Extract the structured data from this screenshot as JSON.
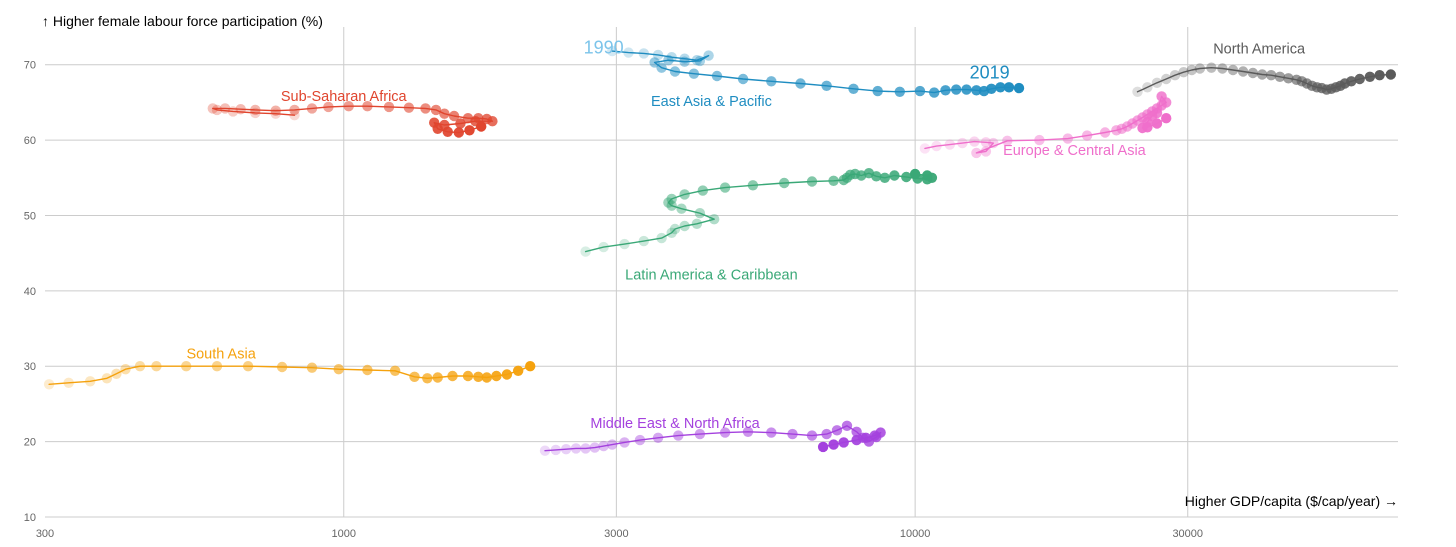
{
  "chart_data": {
    "type": "scatter",
    "x_scale": "log",
    "xlabel": "Higher GDP/capita ($/cap/year) →",
    "ylabel": "↑ Higher female labour force participation (%)",
    "xlim": [
      300,
      70000
    ],
    "ylim": [
      10,
      75
    ],
    "x_ticks": [
      {
        "value": 300,
        "label": "300"
      },
      {
        "value": 1000,
        "label": "1000"
      },
      {
        "value": 3000,
        "label": "3000"
      },
      {
        "value": 10000,
        "label": "10000"
      },
      {
        "value": 30000,
        "label": "30000"
      }
    ],
    "y_ticks": [
      {
        "value": 10,
        "label": "10"
      },
      {
        "value": 20,
        "label": "20"
      },
      {
        "value": 30,
        "label": "30"
      },
      {
        "value": 40,
        "label": "40"
      },
      {
        "value": 50,
        "label": "50"
      },
      {
        "value": 60,
        "label": "60"
      },
      {
        "value": 70,
        "label": "70"
      }
    ],
    "year_annotations": [
      {
        "text": "1990",
        "x": 2850,
        "y": 71.5,
        "color": "#7cc4ea"
      },
      {
        "text": "2019",
        "x": 13500,
        "y": 68.2,
        "color": "#1f8dc1"
      }
    ],
    "series": [
      {
        "name": "Sub-Saharan Africa",
        "color": "#e0452e",
        "label": {
          "x": 1000,
          "y": 65.2
        },
        "x": [
          820,
          760,
          700,
          640,
          600,
          590,
          620,
          660,
          700,
          760,
          820,
          880,
          940,
          1020,
          1100,
          1200,
          1300,
          1390,
          1450,
          1500,
          1560,
          1650,
          1720,
          1780,
          1820,
          1700,
          1600,
          1500,
          1440,
          1460,
          1520,
          1590,
          1660,
          1740
        ],
        "y": [
          63.3,
          63.5,
          63.6,
          63.8,
          64.0,
          64.2,
          64.2,
          64.1,
          64.0,
          63.9,
          64.0,
          64.2,
          64.4,
          64.5,
          64.5,
          64.4,
          64.3,
          64.2,
          64.0,
          63.5,
          63.2,
          62.9,
          62.9,
          62.8,
          62.5,
          62.5,
          62.2,
          62.0,
          62.3,
          61.5,
          61.1,
          61.0,
          61.3,
          61.8
        ]
      },
      {
        "name": "East Asia & Pacific",
        "color": "#1f8dc1",
        "label": {
          "x": 4400,
          "y": 64.5
        },
        "x": [
          2950,
          3150,
          3350,
          3550,
          3750,
          3950,
          4150,
          4350,
          4200,
          3950,
          3700,
          3500,
          3600,
          3800,
          4100,
          4500,
          5000,
          5600,
          6300,
          7000,
          7800,
          8600,
          9400,
          10200,
          10800,
          11300,
          11800,
          12300,
          12800,
          13200,
          13600,
          14100,
          14600,
          15200
        ],
        "y": [
          71.8,
          71.6,
          71.5,
          71.3,
          71.0,
          70.8,
          70.6,
          71.2,
          70.5,
          70.4,
          70.6,
          70.3,
          69.6,
          69.1,
          68.8,
          68.5,
          68.1,
          67.8,
          67.5,
          67.2,
          66.8,
          66.5,
          66.4,
          66.5,
          66.3,
          66.6,
          66.7,
          66.7,
          66.6,
          66.5,
          66.8,
          67.0,
          67.0,
          66.9
        ]
      },
      {
        "name": "North America",
        "color": "#5a5a5a",
        "label": {
          "x": 40000,
          "y": 71.5
        },
        "x": [
          24500,
          25500,
          26500,
          27500,
          28500,
          29500,
          30500,
          31500,
          33000,
          34500,
          36000,
          37500,
          39000,
          40500,
          42000,
          43500,
          45000,
          46500,
          47500,
          48500,
          49500,
          50500,
          51500,
          52500,
          53500,
          54500,
          55500,
          56500,
          58000,
          60000,
          62500,
          65000,
          68000
        ],
        "y": [
          66.4,
          67.0,
          67.6,
          68.1,
          68.6,
          69.0,
          69.3,
          69.5,
          69.6,
          69.5,
          69.3,
          69.1,
          68.9,
          68.7,
          68.6,
          68.4,
          68.2,
          68.0,
          67.8,
          67.5,
          67.2,
          67.0,
          66.9,
          66.7,
          66.8,
          67.0,
          67.2,
          67.5,
          67.8,
          68.1,
          68.4,
          68.6,
          68.7
        ]
      },
      {
        "name": "Europe & Central Asia",
        "color": "#ef6fcb",
        "label": {
          "x": 19000,
          "y": 58.0
        },
        "x": [
          10400,
          10900,
          11500,
          12100,
          12700,
          13300,
          13700,
          13300,
          12800,
          14500,
          16500,
          18500,
          20000,
          21500,
          22500,
          23000,
          23500,
          24000,
          24500,
          25000,
          25500,
          26000,
          26500,
          27000,
          27500,
          27000,
          26500,
          26000,
          25500,
          25000,
          25500,
          26500,
          27500
        ],
        "y": [
          58.9,
          59.2,
          59.4,
          59.6,
          59.8,
          59.7,
          59.6,
          58.5,
          58.3,
          59.9,
          60.0,
          60.2,
          60.6,
          61.0,
          61.3,
          61.5,
          61.8,
          62.2,
          62.6,
          63.0,
          63.4,
          63.8,
          64.2,
          64.6,
          65.0,
          65.8,
          63.6,
          63.2,
          62.4,
          61.6,
          61.7,
          62.2,
          62.9
        ]
      },
      {
        "name": "Latin America & Caribbean",
        "color": "#3aa877",
        "label": {
          "x": 4400,
          "y": 41.5
        },
        "x": [
          2650,
          2850,
          3100,
          3350,
          3600,
          3750,
          3800,
          3950,
          4150,
          4450,
          4200,
          3900,
          3750,
          3700,
          3750,
          3950,
          4250,
          4650,
          5200,
          5900,
          6600,
          7200,
          7500,
          7600,
          7700,
          7850,
          8050,
          8300,
          8550,
          8850,
          9200,
          9650,
          10100,
          10500,
          10700,
          10500,
          10000
        ],
        "y": [
          45.2,
          45.8,
          46.2,
          46.6,
          47.0,
          47.7,
          48.2,
          48.6,
          48.9,
          49.5,
          50.3,
          50.9,
          51.3,
          51.7,
          52.2,
          52.8,
          53.3,
          53.7,
          54.0,
          54.3,
          54.5,
          54.6,
          54.7,
          55.0,
          55.4,
          55.5,
          55.3,
          55.6,
          55.2,
          55.0,
          55.3,
          55.1,
          54.9,
          54.8,
          55.0,
          55.3,
          55.5
        ]
      },
      {
        "name": "South Asia",
        "color": "#f5a20e",
        "label": {
          "x": 610,
          "y": 31.0
        },
        "x": [
          305,
          330,
          360,
          385,
          400,
          415,
          440,
          470,
          530,
          600,
          680,
          780,
          880,
          980,
          1100,
          1230,
          1330,
          1400,
          1460,
          1550,
          1650,
          1720,
          1780,
          1850,
          1930,
          2020,
          2120
        ],
        "y": [
          27.6,
          27.8,
          28.0,
          28.4,
          29.0,
          29.6,
          30.0,
          30.0,
          30.0,
          30.0,
          30.0,
          29.9,
          29.8,
          29.6,
          29.5,
          29.4,
          28.6,
          28.4,
          28.5,
          28.7,
          28.7,
          28.6,
          28.5,
          28.7,
          28.9,
          29.4,
          30.0
        ]
      },
      {
        "name": "Middle East & North Africa",
        "color": "#a441de",
        "label": {
          "x": 3800,
          "y": 21.8
        },
        "x": [
          2250,
          2350,
          2450,
          2550,
          2650,
          2750,
          2850,
          2950,
          3100,
          3300,
          3550,
          3850,
          4200,
          4650,
          5100,
          5600,
          6100,
          6600,
          7000,
          7300,
          7600,
          7900,
          8100,
          8300,
          8550,
          8700,
          8500,
          8200,
          7900,
          7500,
          7200,
          6900
        ],
        "y": [
          18.8,
          18.9,
          19.0,
          19.1,
          19.1,
          19.2,
          19.4,
          19.6,
          19.9,
          20.2,
          20.5,
          20.8,
          21.0,
          21.2,
          21.3,
          21.2,
          21.0,
          20.8,
          21.0,
          21.5,
          22.1,
          21.3,
          20.5,
          20.0,
          20.6,
          21.2,
          20.8,
          20.5,
          20.2,
          19.9,
          19.6,
          19.3
        ]
      }
    ]
  }
}
